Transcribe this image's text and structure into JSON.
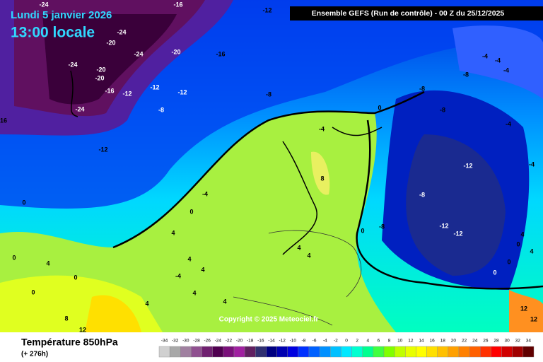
{
  "header": {
    "date": "Lundi 5 janvier 2026",
    "time": "13:00 locale",
    "run": "Ensemble GEFS  (Run de contrôle)  -  00 Z du 25/12/2025"
  },
  "copyright": "Copyright © 2025 Meteociel.fr",
  "footer": {
    "title": "Température 850hPa",
    "subtitle": "(+ 276h)"
  },
  "colorbar": {
    "ticks": [
      -34,
      -32,
      -30,
      -28,
      -26,
      -24,
      -22,
      -20,
      -18,
      -16,
      -14,
      -12,
      -10,
      -8,
      -6,
      -4,
      -2,
      0,
      2,
      4,
      6,
      8,
      10,
      12,
      14,
      16,
      18,
      20,
      22,
      24,
      26,
      28,
      30,
      32,
      34
    ],
    "colors": [
      "#d0d0d0",
      "#a8a8a8",
      "#a080a0",
      "#905090",
      "#702070",
      "#500050",
      "#7a107a",
      "#a020a0",
      "#602060",
      "#303070",
      "#000080",
      "#0000b0",
      "#0000e0",
      "#0030ff",
      "#0060ff",
      "#0090ff",
      "#00c0ff",
      "#00e8ff",
      "#00ffd0",
      "#00ff90",
      "#40ff40",
      "#80ff00",
      "#c0ff00",
      "#e8ff00",
      "#ffff00",
      "#ffe000",
      "#ffc000",
      "#ffa000",
      "#ff8000",
      "#ff6000",
      "#ff3000",
      "#ff0000",
      "#d00000",
      "#a00000",
      "#600000"
    ]
  },
  "contour_labels": [
    "-24",
    "-16",
    "-12",
    "-24",
    "-20",
    "-24",
    "-20",
    "-16",
    "-24",
    "-20",
    "-20",
    "-16",
    "-12",
    "-12",
    "-12",
    "-8",
    "-24",
    "-8",
    "16",
    "-12",
    "0",
    "-4",
    "-8",
    "-8",
    "-8",
    "-4",
    "-4",
    "-4",
    "-4",
    "-4",
    "-12",
    "8",
    "-4",
    "0",
    "4",
    "-8",
    "-8",
    "0",
    "-12",
    "-12",
    "0",
    "0",
    "4",
    "0",
    "4",
    "4",
    "4",
    "-4",
    "4",
    "4",
    "0",
    "4",
    "4",
    "8",
    "12",
    "0",
    "0",
    "0",
    "4",
    "4",
    "12",
    "12"
  ]
}
